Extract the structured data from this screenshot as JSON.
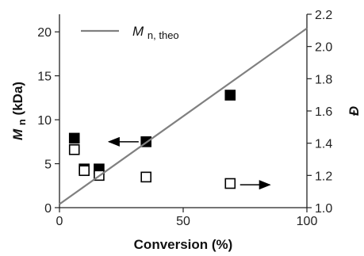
{
  "chart_data": {
    "type": "scatter",
    "title": "",
    "xlabel": "Conversion (%)",
    "ylabel_left": {
      "main": "M",
      "sub": "n",
      "unit": " (kDa)"
    },
    "ylabel_right": "Đ",
    "xlim": [
      0,
      100
    ],
    "ylim_left": [
      0,
      22
    ],
    "ylim_right": [
      1.0,
      2.2
    ],
    "x_ticks": [
      0,
      50,
      100
    ],
    "y_left_ticks": [
      0,
      5,
      10,
      15,
      20
    ],
    "y_right_ticks": [
      "1.0",
      "1.2",
      "1.4",
      "1.6",
      "1.8",
      "2.0",
      "2.2"
    ],
    "grid": false,
    "legend": {
      "position": "top-left",
      "entries": [
        {
          "main": "M",
          "sub": "n, theo",
          "style": "line",
          "color": "#808080"
        }
      ]
    },
    "series": [
      {
        "axis": "left",
        "marker": "filled-square",
        "color": "#000000",
        "x": [
          6,
          10,
          16,
          35,
          69
        ],
        "y": [
          7.9,
          4.4,
          4.4,
          7.5,
          12.8
        ]
      },
      {
        "axis": "right",
        "marker": "open-square",
        "color": "#000000",
        "x": [
          6,
          10,
          16,
          35,
          69
        ],
        "y": [
          1.36,
          1.23,
          1.2,
          1.19,
          1.15
        ]
      },
      {
        "axis": "left",
        "marker": "line",
        "color": "#808080",
        "x": [
          0,
          100
        ],
        "y": [
          0.4,
          20.4
        ]
      }
    ],
    "annotations": [
      {
        "type": "arrow",
        "direction": "left",
        "near_series": "filled-square",
        "x_from": 32,
        "x_to": 20,
        "y_left": 7.5
      },
      {
        "type": "arrow",
        "direction": "right",
        "near_series": "open-square",
        "x_from": 73,
        "x_to": 85,
        "y_left": 2.6
      }
    ]
  }
}
